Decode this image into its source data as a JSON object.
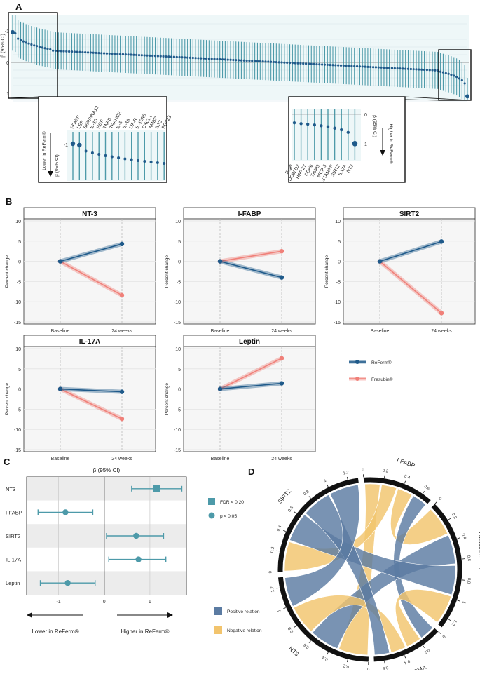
{
  "figure": {
    "panels": [
      "A",
      "B",
      "C",
      "D"
    ]
  },
  "colors": {
    "reformed": "#1f5a8a",
    "fresubin": "#f08079",
    "teal": "#4d9aa9",
    "positive": "#5b7ba2",
    "negative": "#f2c46d",
    "ci_band": "#d9ecee"
  },
  "panel_a": {
    "ylabel": "β (95% CI)",
    "yticks": [
      "-1",
      "0",
      "1"
    ],
    "zoom_left": {
      "ylabel": "β (95% CI)",
      "arrow_label": "Lower in ReFerm®",
      "yticks": [
        "-1"
      ],
      "markers": [
        "I-FABP",
        "LEP",
        "SERPINA12",
        "IL-10",
        "HGF",
        "TNFB",
        "TRANCE",
        "IL-6",
        "IL-18",
        "LIF-R",
        "IL-10RB",
        "CXCL1",
        "AMBP",
        "IL33",
        "FGF23"
      ]
    },
    "zoom_right": {
      "ylabel": "β (95% CI)",
      "arrow_label": "Higher in ReFerm®",
      "yticks": [
        "0",
        "1"
      ],
      "markers": [
        "PIgR",
        "DCBLD2",
        "HSP 27",
        "CDH6",
        "TIMP3",
        "MCP-3",
        "STAMBP",
        "SIRT2",
        "IL17A",
        "NT3"
      ]
    }
  },
  "panel_b": {
    "ylabel": "Percent change",
    "xticks": [
      "Baseline",
      "24 weeks"
    ],
    "yticks": [
      "10",
      "5",
      "0",
      "-5",
      "-10",
      "-15"
    ],
    "legend": [
      {
        "name": "ReFerm®"
      },
      {
        "name": "Fresubin®"
      }
    ],
    "facets": [
      {
        "title": "NT-3",
        "reformed": [
          0,
          4.3
        ],
        "fresubin": [
          0,
          -8.4
        ]
      },
      {
        "title": "I-FABP",
        "reformed": [
          0,
          -4.0
        ],
        "fresubin": [
          0,
          2.5
        ]
      },
      {
        "title": "SIRT2",
        "reformed": [
          0,
          4.9
        ],
        "fresubin": [
          0,
          -12.8
        ]
      },
      {
        "title": "IL-17A",
        "reformed": [
          0,
          -0.7
        ],
        "fresubin": [
          0,
          -7.4
        ]
      },
      {
        "title": "Leptin",
        "reformed": [
          0,
          1.4
        ],
        "fresubin": [
          0,
          7.6
        ]
      }
    ]
  },
  "panel_c": {
    "title": "β (95% CI)",
    "xticks": [
      "-1",
      "0",
      "1"
    ],
    "arrow_left": "Lower in ReFerm®",
    "arrow_right": "Higher in ReFerm®",
    "legend": [
      {
        "label": "FDR < 0.20",
        "shape": "square"
      },
      {
        "label": "p < 0.05",
        "shape": "circle"
      }
    ]
  },
  "panel_d": {
    "legend": [
      {
        "label": "Positive relation"
      },
      {
        "label": "Negative relation"
      }
    ],
    "sectors": [
      {
        "name": "I-FABP",
        "ticks": [
          "0",
          "0.2",
          "0.4",
          "0.6"
        ]
      },
      {
        "name": "Lactobacillus plantarum",
        "ticks": [
          "0",
          "0.2",
          "0.4",
          "0.6",
          "0.8",
          "1",
          "1.2"
        ]
      },
      {
        "name": "α-SMA",
        "ticks": [
          "0",
          "0.2",
          "0.4",
          "0.6"
        ]
      },
      {
        "name": "NT3",
        "ticks": [
          "0",
          "0.2",
          "0.4",
          "0.6",
          "0.8",
          "1",
          "1.2"
        ]
      },
      {
        "name": "SIRT2",
        "ticks": [
          "0",
          "0.2",
          "0.4",
          "0.6",
          "0.8",
          "1",
          "1.2"
        ]
      }
    ]
  },
  "chart_data": [
    {
      "type": "scatter",
      "title": "A",
      "ylabel": "β (95% CI)",
      "ylim": [
        1.2,
        -1.5
      ],
      "n_points": 170,
      "beta_start": [
        -0.98,
        -0.94,
        -0.77,
        -0.72,
        -0.68,
        -0.64,
        -0.61,
        -0.58,
        -0.55,
        -0.53,
        -0.5,
        -0.48,
        -0.46,
        -0.44,
        -0.42
      ],
      "beta_mid_range": [
        -0.38,
        0.26
      ],
      "beta_end": [
        0.3,
        0.32,
        0.35,
        0.37,
        0.4,
        0.43,
        0.47,
        0.52,
        0.58,
        0.68,
        1.1
      ],
      "ci_halfwidth": 0.6
    },
    {
      "type": "line",
      "title": "B",
      "categories": [
        "Baseline",
        "24 weeks"
      ],
      "ylabel": "Percent change",
      "ylim": [
        -15,
        10
      ],
      "series": [
        {
          "facet": "NT-3",
          "name": "ReFerm®",
          "values": [
            0,
            4.3
          ]
        },
        {
          "facet": "NT-3",
          "name": "Fresubin®",
          "values": [
            0,
            -8.4
          ]
        },
        {
          "facet": "I-FABP",
          "name": "ReFerm®",
          "values": [
            0,
            -4.0
          ]
        },
        {
          "facet": "I-FABP",
          "name": "Fresubin®",
          "values": [
            0,
            2.5
          ]
        },
        {
          "facet": "SIRT2",
          "name": "ReFerm®",
          "values": [
            0,
            4.9
          ]
        },
        {
          "facet": "SIRT2",
          "name": "Fresubin®",
          "values": [
            0,
            -12.8
          ]
        },
        {
          "facet": "IL-17A",
          "name": "ReFerm®",
          "values": [
            0,
            -0.7
          ]
        },
        {
          "facet": "IL-17A",
          "name": "Fresubin®",
          "values": [
            0,
            -7.4
          ]
        },
        {
          "facet": "Leptin",
          "name": "ReFerm®",
          "values": [
            0,
            1.4
          ]
        },
        {
          "facet": "Leptin",
          "name": "Fresubin®",
          "values": [
            0,
            7.6
          ]
        }
      ]
    },
    {
      "type": "scatter",
      "title": "C",
      "xlabel": "β (95% CI)",
      "xlim": [
        -1.7,
        1.8
      ],
      "rows": [
        {
          "label": "NT3",
          "beta": 1.15,
          "lo": 0.6,
          "hi": 1.7,
          "marker": "square"
        },
        {
          "label": "I-FABP",
          "beta": -0.85,
          "lo": -1.45,
          "hi": -0.25,
          "marker": "circle"
        },
        {
          "label": "SIRT2",
          "beta": 0.7,
          "lo": 0.05,
          "hi": 1.3,
          "marker": "circle"
        },
        {
          "label": "IL-17A",
          "beta": 0.75,
          "lo": 0.1,
          "hi": 1.35,
          "marker": "circle"
        },
        {
          "label": "Leptin",
          "beta": -0.8,
          "lo": -1.4,
          "hi": -0.2,
          "marker": "circle"
        }
      ]
    },
    {
      "type": "chord",
      "title": "D",
      "sectors": [
        {
          "name": "I-FABP",
          "length": 0.7
        },
        {
          "name": "Lactobacillus plantarum",
          "length": 1.3
        },
        {
          "name": "α-SMA",
          "length": 0.7
        },
        {
          "name": "NT3",
          "length": 1.3
        },
        {
          "name": "SIRT2",
          "length": 1.3
        }
      ],
      "links": [
        {
          "from": "I-FABP",
          "to": "NT3",
          "relation": "negative"
        },
        {
          "from": "I-FABP",
          "to": "SIRT2",
          "relation": "negative"
        },
        {
          "from": "I-FABP",
          "to": "Lactobacillus plantarum",
          "relation": "negative"
        },
        {
          "from": "I-FABP",
          "to": "α-SMA",
          "relation": "positive"
        },
        {
          "from": "Lactobacillus plantarum",
          "to": "NT3",
          "relation": "positive"
        },
        {
          "from": "Lactobacillus plantarum",
          "to": "SIRT2",
          "relation": "positive"
        },
        {
          "from": "Lactobacillus plantarum",
          "to": "α-SMA",
          "relation": "negative"
        },
        {
          "from": "α-SMA",
          "to": "NT3",
          "relation": "negative"
        },
        {
          "from": "α-SMA",
          "to": "SIRT2",
          "relation": "positive"
        },
        {
          "from": "NT3",
          "to": "SIRT2",
          "relation": "positive"
        }
      ]
    }
  ]
}
